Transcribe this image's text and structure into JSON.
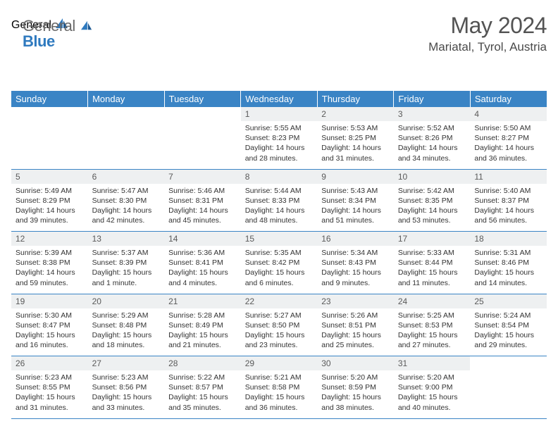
{
  "logo": {
    "general": "General",
    "blue": "Blue"
  },
  "title": "May 2024",
  "location": "Mariatal, Tyrol, Austria",
  "colors": {
    "header_bg": "#3a84c5",
    "header_text": "#ffffff",
    "daynum_bg": "#eef0f1",
    "border": "#3a84c5",
    "title_color": "#535353",
    "logo_blue": "#2f7abf",
    "logo_gray": "#6a6a6a"
  },
  "day_headers": [
    "Sunday",
    "Monday",
    "Tuesday",
    "Wednesday",
    "Thursday",
    "Friday",
    "Saturday"
  ],
  "weeks": [
    [
      null,
      null,
      null,
      {
        "n": "1",
        "sr": "5:55 AM",
        "ss": "8:23 PM",
        "dl": "14 hours and 28 minutes."
      },
      {
        "n": "2",
        "sr": "5:53 AM",
        "ss": "8:25 PM",
        "dl": "14 hours and 31 minutes."
      },
      {
        "n": "3",
        "sr": "5:52 AM",
        "ss": "8:26 PM",
        "dl": "14 hours and 34 minutes."
      },
      {
        "n": "4",
        "sr": "5:50 AM",
        "ss": "8:27 PM",
        "dl": "14 hours and 36 minutes."
      }
    ],
    [
      {
        "n": "5",
        "sr": "5:49 AM",
        "ss": "8:29 PM",
        "dl": "14 hours and 39 minutes."
      },
      {
        "n": "6",
        "sr": "5:47 AM",
        "ss": "8:30 PM",
        "dl": "14 hours and 42 minutes."
      },
      {
        "n": "7",
        "sr": "5:46 AM",
        "ss": "8:31 PM",
        "dl": "14 hours and 45 minutes."
      },
      {
        "n": "8",
        "sr": "5:44 AM",
        "ss": "8:33 PM",
        "dl": "14 hours and 48 minutes."
      },
      {
        "n": "9",
        "sr": "5:43 AM",
        "ss": "8:34 PM",
        "dl": "14 hours and 51 minutes."
      },
      {
        "n": "10",
        "sr": "5:42 AM",
        "ss": "8:35 PM",
        "dl": "14 hours and 53 minutes."
      },
      {
        "n": "11",
        "sr": "5:40 AM",
        "ss": "8:37 PM",
        "dl": "14 hours and 56 minutes."
      }
    ],
    [
      {
        "n": "12",
        "sr": "5:39 AM",
        "ss": "8:38 PM",
        "dl": "14 hours and 59 minutes."
      },
      {
        "n": "13",
        "sr": "5:37 AM",
        "ss": "8:39 PM",
        "dl": "15 hours and 1 minute."
      },
      {
        "n": "14",
        "sr": "5:36 AM",
        "ss": "8:41 PM",
        "dl": "15 hours and 4 minutes."
      },
      {
        "n": "15",
        "sr": "5:35 AM",
        "ss": "8:42 PM",
        "dl": "15 hours and 6 minutes."
      },
      {
        "n": "16",
        "sr": "5:34 AM",
        "ss": "8:43 PM",
        "dl": "15 hours and 9 minutes."
      },
      {
        "n": "17",
        "sr": "5:33 AM",
        "ss": "8:44 PM",
        "dl": "15 hours and 11 minutes."
      },
      {
        "n": "18",
        "sr": "5:31 AM",
        "ss": "8:46 PM",
        "dl": "15 hours and 14 minutes."
      }
    ],
    [
      {
        "n": "19",
        "sr": "5:30 AM",
        "ss": "8:47 PM",
        "dl": "15 hours and 16 minutes."
      },
      {
        "n": "20",
        "sr": "5:29 AM",
        "ss": "8:48 PM",
        "dl": "15 hours and 18 minutes."
      },
      {
        "n": "21",
        "sr": "5:28 AM",
        "ss": "8:49 PM",
        "dl": "15 hours and 21 minutes."
      },
      {
        "n": "22",
        "sr": "5:27 AM",
        "ss": "8:50 PM",
        "dl": "15 hours and 23 minutes."
      },
      {
        "n": "23",
        "sr": "5:26 AM",
        "ss": "8:51 PM",
        "dl": "15 hours and 25 minutes."
      },
      {
        "n": "24",
        "sr": "5:25 AM",
        "ss": "8:53 PM",
        "dl": "15 hours and 27 minutes."
      },
      {
        "n": "25",
        "sr": "5:24 AM",
        "ss": "8:54 PM",
        "dl": "15 hours and 29 minutes."
      }
    ],
    [
      {
        "n": "26",
        "sr": "5:23 AM",
        "ss": "8:55 PM",
        "dl": "15 hours and 31 minutes."
      },
      {
        "n": "27",
        "sr": "5:23 AM",
        "ss": "8:56 PM",
        "dl": "15 hours and 33 minutes."
      },
      {
        "n": "28",
        "sr": "5:22 AM",
        "ss": "8:57 PM",
        "dl": "15 hours and 35 minutes."
      },
      {
        "n": "29",
        "sr": "5:21 AM",
        "ss": "8:58 PM",
        "dl": "15 hours and 36 minutes."
      },
      {
        "n": "30",
        "sr": "5:20 AM",
        "ss": "8:59 PM",
        "dl": "15 hours and 38 minutes."
      },
      {
        "n": "31",
        "sr": "5:20 AM",
        "ss": "9:00 PM",
        "dl": "15 hours and 40 minutes."
      },
      null
    ]
  ],
  "labels": {
    "sunrise": "Sunrise: ",
    "sunset": "Sunset: ",
    "daylight": "Daylight: "
  }
}
